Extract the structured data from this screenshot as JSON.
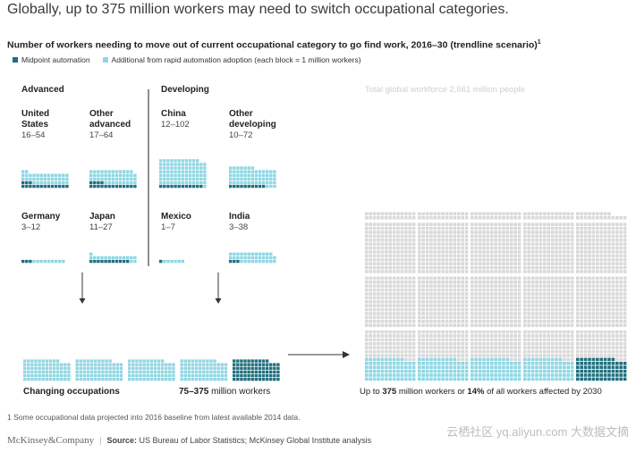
{
  "headline": "Globally, up to 375 million workers may need to switch occupational categories.",
  "chart_data": {
    "type": "waffle",
    "title": "Number of workers needing to move out of current occupational category to go find work, 2016–30 (trendline scenario)",
    "title_sup": "1",
    "legend": [
      {
        "label": "Midpoint automation",
        "color": "#1f6f7e"
      },
      {
        "label": "Additional from rapid automation adoption (each block = 1 million workers)",
        "color": "#8fd6e3"
      }
    ],
    "groups": [
      {
        "name": "Advanced",
        "regions": [
          {
            "name": "United States",
            "lines": [
              "United",
              "States"
            ],
            "range": "16–54",
            "low": 16,
            "high": 54
          },
          {
            "name": "Other advanced",
            "lines": [
              "Other",
              "advanced"
            ],
            "range": "17–64",
            "low": 17,
            "high": 64
          },
          {
            "name": "Germany",
            "lines": [
              "Germany"
            ],
            "range": "3–12",
            "low": 3,
            "high": 12
          },
          {
            "name": "Japan",
            "lines": [
              "Japan"
            ],
            "range": "11–27",
            "low": 11,
            "high": 27
          }
        ]
      },
      {
        "name": "Developing",
        "regions": [
          {
            "name": "China",
            "lines": [
              "China"
            ],
            "range": "12–102",
            "low": 12,
            "high": 102
          },
          {
            "name": "Other developing",
            "lines": [
              "Other",
              "developing"
            ],
            "range": "10–72",
            "low": 10,
            "high": 72
          },
          {
            "name": "Mexico",
            "lines": [
              "Mexico"
            ],
            "range": "1–7",
            "low": 1,
            "high": 7
          },
          {
            "name": "India",
            "lines": [
              "India"
            ],
            "range": "3–38",
            "low": 3,
            "high": 38
          }
        ]
      }
    ],
    "combined": {
      "label": "Changing occupations",
      "value_text": "75–375",
      "unit": "million workers",
      "low": 75,
      "high": 375
    },
    "global": {
      "title": "Total global workforce 2,661 million people",
      "total": 2661,
      "affected_prefix": "Up to",
      "affected_value": "375",
      "affected_mid": "million workers or",
      "affected_pct": "14%",
      "affected_suffix": "of all workers affected by 2030",
      "low": 75,
      "high": 375
    }
  },
  "footnote": "1 Some occupational data projected into 2016 baseline from latest available 2014 data.",
  "footer": {
    "brand": "McKinsey&Company",
    "source_label": "Source:",
    "source": "US Bureau of Labor Statistics; McKinsey Global Institute analysis"
  },
  "watermark": "云栖社区 yq.aliyun.com  大数据文摘",
  "colors": {
    "dark": "#1f6f7e",
    "light": "#8fd6e3",
    "grey": "#d9d9d9",
    "divider": "#444444"
  }
}
